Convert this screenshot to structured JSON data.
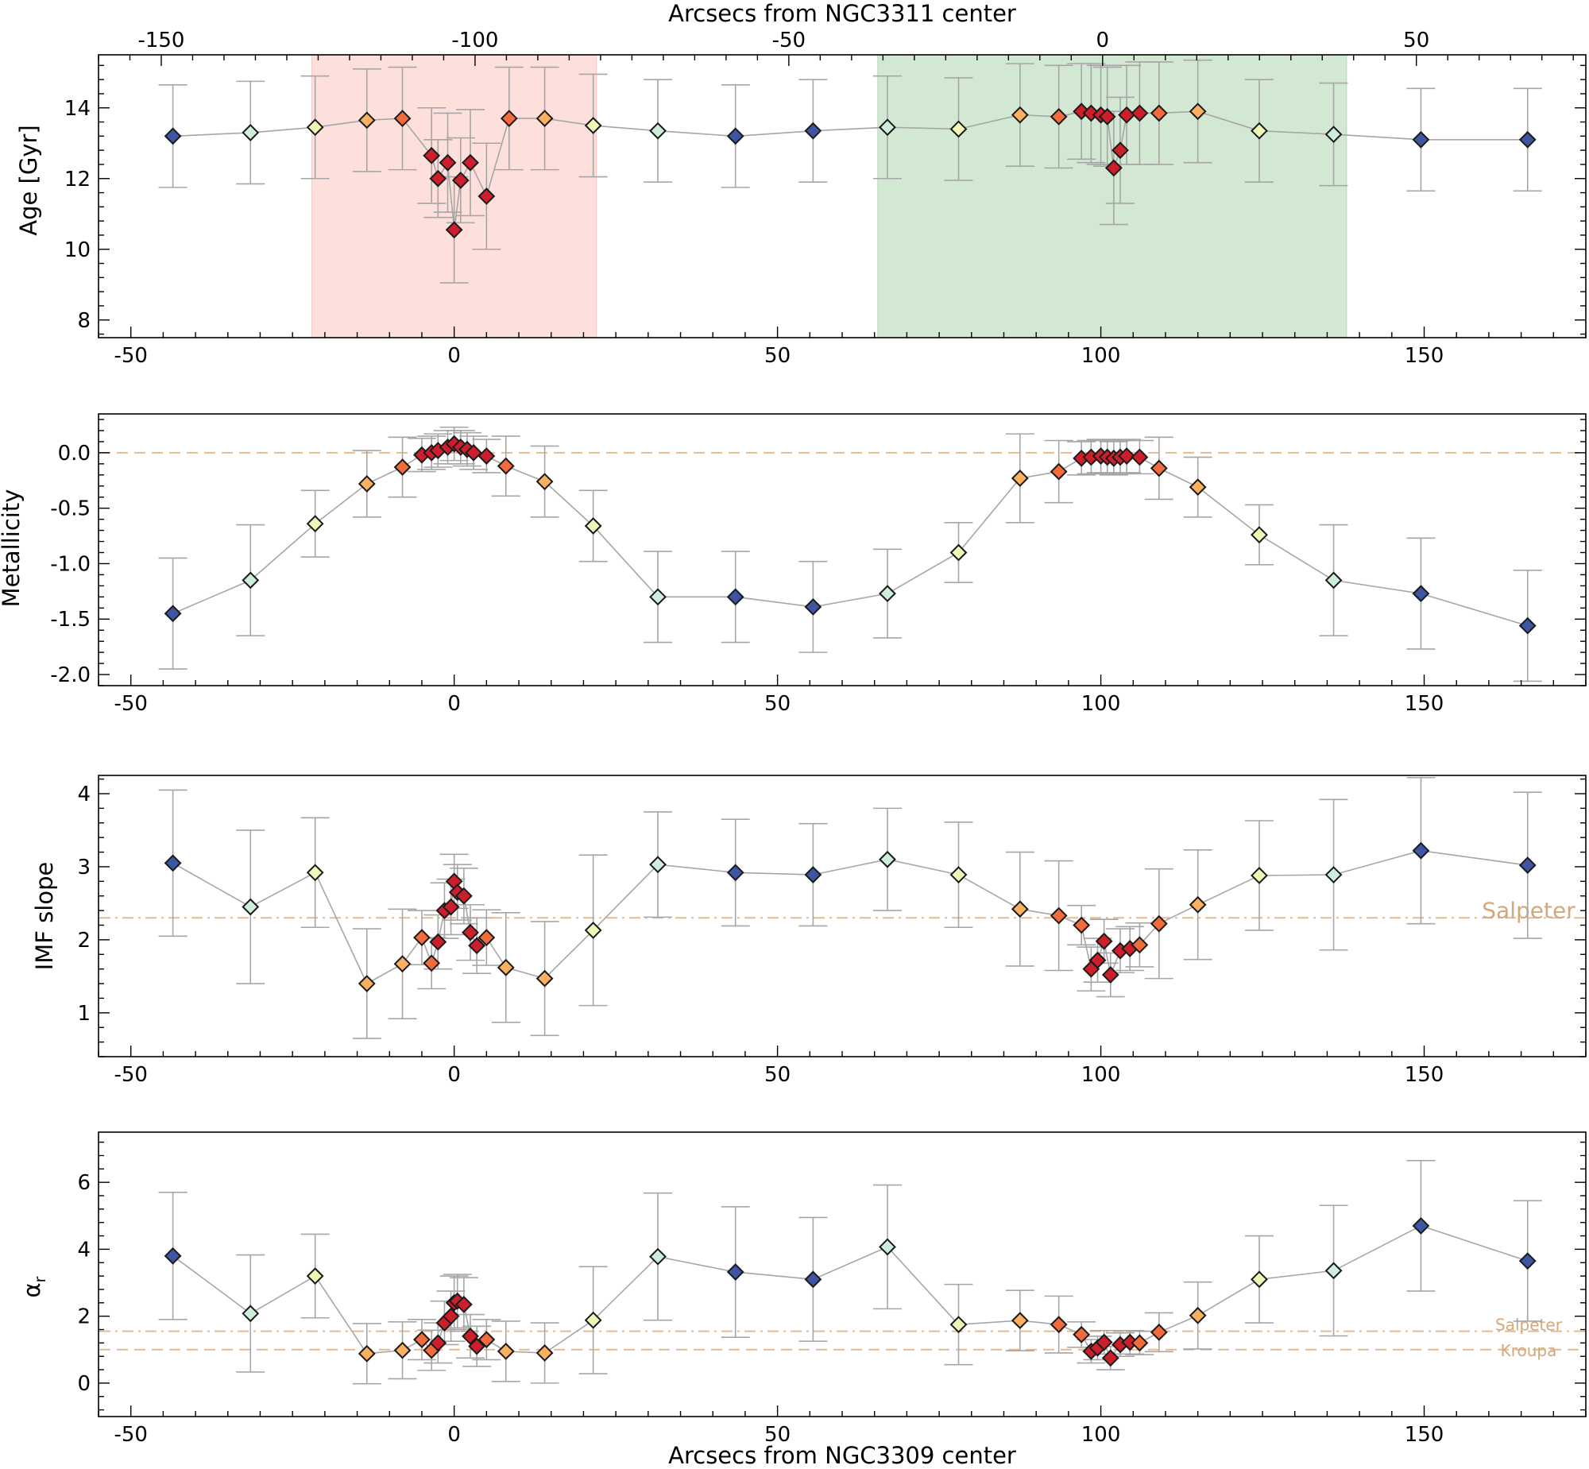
{
  "colors": {
    "error_bar": "#a6a6a6",
    "connector": "#a6a6a6",
    "reference_line": "#e8b98e",
    "reference_text": "#d2a87e",
    "red_region": "#fde0dc",
    "green_region": "#d2e8d2",
    "marker_edge": "#1a1a1a",
    "palette": [
      "#3d55a3",
      "#cdeeda",
      "#eef7b8",
      "#fbb060",
      "#f26b3b",
      "#cc1f2b"
    ]
  },
  "chart_data": [
    {
      "type": "scatter",
      "panel": "age",
      "ylabel": "Age [Gyr]",
      "top_xlabel": "Arcsecs from NGC3311 center",
      "top_xlim": [
        -160,
        77
      ],
      "top_xticks": [
        -150,
        -100,
        -50,
        0,
        50
      ],
      "top_xtick_labels": [
        "-150",
        "-100",
        "-50",
        "0",
        "50"
      ],
      "xlim": [
        -55,
        175
      ],
      "ylim": [
        7.5,
        15.5
      ],
      "xticks": [
        -50,
        0,
        50,
        100,
        150
      ],
      "xtick_labels": [
        "-50",
        "0",
        "50",
        "100",
        "150"
      ],
      "yticks": [
        8,
        10,
        12,
        14
      ],
      "ytick_labels": [
        "8",
        "10",
        "12",
        "14"
      ],
      "shaded_regions": [
        {
          "x0": -22,
          "x1": 22,
          "color": "red"
        },
        {
          "x0": 65.5,
          "x1": 138,
          "color": "green"
        }
      ],
      "x": [
        -43.5,
        -31.5,
        -21.5,
        -13.5,
        -8,
        -3.5,
        -2.5,
        -1,
        0,
        1,
        2.5,
        5,
        8.5,
        14,
        21.5,
        31.5,
        43.5,
        55.5,
        67,
        78,
        87.5,
        93.5,
        97,
        98.5,
        100,
        101,
        102,
        103,
        104,
        106,
        109,
        115,
        124.5,
        136,
        149.5,
        166
      ],
      "y": [
        13.2,
        13.3,
        13.45,
        13.65,
        13.7,
        12.65,
        12.0,
        12.45,
        10.55,
        11.95,
        12.45,
        11.5,
        13.7,
        13.7,
        13.5,
        13.35,
        13.2,
        13.35,
        13.45,
        13.4,
        13.8,
        13.75,
        13.9,
        13.85,
        13.8,
        13.75,
        12.3,
        12.8,
        13.8,
        13.85,
        13.85,
        13.9,
        13.35,
        13.25,
        13.1,
        13.1
      ],
      "err": [
        1.45,
        1.45,
        1.45,
        1.45,
        1.45,
        1.35,
        1.1,
        1.4,
        1.5,
        1.2,
        1.5,
        1.5,
        1.45,
        1.45,
        1.45,
        1.45,
        1.45,
        1.45,
        1.45,
        1.45,
        1.45,
        1.45,
        1.35,
        1.4,
        1.4,
        1.4,
        1.6,
        1.5,
        1.4,
        1.45,
        1.45,
        1.45,
        1.45,
        1.45,
        1.45,
        1.45
      ],
      "color_index": [
        0,
        1,
        2,
        3,
        4,
        5,
        5,
        5,
        5,
        5,
        5,
        5,
        4,
        3,
        2,
        1,
        0,
        0,
        1,
        2,
        3,
        4,
        5,
        5,
        5,
        5,
        5,
        5,
        5,
        5,
        4,
        3,
        2,
        1,
        0,
        0
      ]
    },
    {
      "type": "scatter",
      "panel": "metallicity",
      "ylabel": "Metallicity",
      "xlim": [
        -55,
        175
      ],
      "ylim": [
        -2.1,
        0.35
      ],
      "xticks": [
        -50,
        0,
        50,
        100,
        150
      ],
      "xtick_labels": [
        "-50",
        "0",
        "50",
        "100",
        "150"
      ],
      "yticks": [
        -2.0,
        -1.5,
        -1.0,
        -0.5,
        0.0
      ],
      "ytick_labels": [
        "-2.0",
        "-1.5",
        "-1.0",
        "-0.5",
        "0.0"
      ],
      "reference_lines": [
        {
          "y": 0.0,
          "style": "dashed"
        }
      ],
      "x": [
        -43.5,
        -31.5,
        -21.5,
        -13.5,
        -8,
        -5,
        -3.5,
        -2.5,
        -1,
        0,
        1,
        2,
        3,
        5,
        8,
        14,
        21.5,
        31.5,
        43.5,
        55.5,
        67,
        78,
        87.5,
        93.5,
        97,
        98.5,
        100,
        101,
        102,
        103,
        104,
        106,
        109,
        115,
        124.5,
        136,
        149.5,
        166
      ],
      "y": [
        -1.45,
        -1.15,
        -0.64,
        -0.28,
        -0.13,
        -0.02,
        0.0,
        0.02,
        0.05,
        0.08,
        0.05,
        0.03,
        0.0,
        -0.03,
        -0.12,
        -0.26,
        -0.66,
        -1.3,
        -1.3,
        -1.39,
        -1.27,
        -0.9,
        -0.23,
        -0.17,
        -0.05,
        -0.04,
        -0.03,
        -0.04,
        -0.05,
        -0.04,
        -0.03,
        -0.04,
        -0.14,
        -0.31,
        -0.74,
        -1.15,
        -1.27,
        -1.56
      ],
      "err": [
        0.5,
        0.5,
        0.3,
        0.3,
        0.27,
        0.15,
        0.15,
        0.15,
        0.15,
        0.15,
        0.15,
        0.15,
        0.15,
        0.15,
        0.27,
        0.32,
        0.32,
        0.41,
        0.41,
        0.41,
        0.4,
        0.27,
        0.4,
        0.28,
        0.15,
        0.15,
        0.15,
        0.15,
        0.15,
        0.15,
        0.15,
        0.15,
        0.28,
        0.27,
        0.27,
        0.5,
        0.5,
        0.5
      ],
      "color_index": [
        0,
        1,
        2,
        3,
        4,
        5,
        5,
        5,
        5,
        5,
        5,
        5,
        5,
        5,
        4,
        3,
        2,
        1,
        0,
        0,
        1,
        2,
        3,
        4,
        5,
        5,
        5,
        5,
        5,
        5,
        5,
        5,
        4,
        3,
        2,
        1,
        0,
        0
      ]
    },
    {
      "type": "scatter",
      "panel": "imf",
      "ylabel": "IMF slope",
      "xlim": [
        -55,
        175
      ],
      "ylim": [
        0.4,
        4.25
      ],
      "xticks": [
        -50,
        0,
        50,
        100,
        150
      ],
      "xtick_labels": [
        "-50",
        "0",
        "50",
        "100",
        "150"
      ],
      "yticks": [
        1,
        2,
        3,
        4
      ],
      "ytick_labels": [
        "1",
        "2",
        "3",
        "4"
      ],
      "reference_lines": [
        {
          "y": 2.3,
          "style": "dashdot",
          "label": "Salpeter"
        }
      ],
      "x": [
        -43.5,
        -31.5,
        -21.5,
        -13.5,
        -8,
        -5,
        -3.5,
        -2.5,
        -1.5,
        -0.5,
        0,
        0.5,
        1.5,
        2.5,
        3.5,
        5,
        8,
        14,
        21.5,
        31.5,
        43.5,
        55.5,
        67,
        78,
        87.5,
        93.5,
        97,
        98.5,
        99.5,
        100.5,
        101.5,
        103,
        104.5,
        106,
        109,
        115,
        124.5,
        136,
        149.5,
        166
      ],
      "y": [
        3.05,
        2.45,
        2.92,
        1.4,
        1.67,
        2.03,
        1.68,
        1.97,
        2.4,
        2.45,
        2.8,
        2.65,
        2.6,
        2.1,
        1.92,
        2.03,
        1.62,
        1.47,
        2.13,
        3.03,
        2.92,
        2.89,
        3.1,
        2.89,
        2.42,
        2.33,
        2.2,
        1.6,
        1.72,
        1.98,
        1.52,
        1.85,
        1.88,
        1.93,
        2.22,
        2.48,
        2.88,
        2.89,
        3.22,
        3.02
      ],
      "err": [
        1.0,
        1.05,
        0.75,
        0.75,
        0.75,
        0.37,
        0.35,
        0.37,
        0.38,
        0.38,
        0.37,
        0.38,
        0.38,
        0.38,
        0.38,
        0.38,
        0.75,
        0.78,
        1.03,
        0.72,
        0.73,
        0.7,
        0.7,
        0.72,
        0.78,
        0.75,
        0.27,
        0.3,
        0.3,
        0.3,
        0.3,
        0.3,
        0.3,
        0.3,
        0.75,
        0.75,
        0.75,
        1.03,
        1.0,
        1.0
      ],
      "color_index": [
        0,
        1,
        2,
        3,
        3,
        4,
        4,
        5,
        5,
        5,
        5,
        5,
        5,
        5,
        5,
        4,
        3,
        3,
        2,
        1,
        0,
        0,
        1,
        2,
        3,
        4,
        4,
        5,
        5,
        5,
        5,
        5,
        5,
        4,
        4,
        3,
        2,
        1,
        0,
        0
      ]
    },
    {
      "type": "scatter",
      "panel": "alpha",
      "ylabel_base": "α",
      "ylabel_sub": "r",
      "xlabel": "Arcsecs from NGC3309 center",
      "xlim": [
        -55,
        175
      ],
      "ylim": [
        -1.0,
        7.5
      ],
      "xticks": [
        -50,
        0,
        50,
        100,
        150
      ],
      "xtick_labels": [
        "-50",
        "0",
        "50",
        "100",
        "150"
      ],
      "yticks": [
        0,
        2,
        4,
        6
      ],
      "ytick_labels": [
        "0",
        "2",
        "4",
        "6"
      ],
      "reference_lines": [
        {
          "y": 1.55,
          "style": "dashdot",
          "label": "Salpeter"
        },
        {
          "y": 1.0,
          "style": "dashed",
          "label": "Kroupa"
        }
      ],
      "x": [
        -43.5,
        -31.5,
        -21.5,
        -13.5,
        -8,
        -5,
        -3.5,
        -2.5,
        -1.5,
        -0.5,
        0,
        0.5,
        1.5,
        2.5,
        3.5,
        5,
        8,
        14,
        21.5,
        31.5,
        43.5,
        55.5,
        67,
        78,
        87.5,
        93.5,
        97,
        98.5,
        99.5,
        100.5,
        101.5,
        103,
        104.5,
        106,
        109,
        115,
        124.5,
        136,
        149.5,
        166
      ],
      "y": [
        3.8,
        2.08,
        3.2,
        0.88,
        0.98,
        1.3,
        0.98,
        1.2,
        1.8,
        2.0,
        2.4,
        2.45,
        2.35,
        1.4,
        1.1,
        1.3,
        0.95,
        0.9,
        1.88,
        3.78,
        3.32,
        3.1,
        4.07,
        1.75,
        1.87,
        1.75,
        1.45,
        0.95,
        1.05,
        1.22,
        0.75,
        1.15,
        1.22,
        1.2,
        1.52,
        2.02,
        3.1,
        3.36,
        4.7,
        3.65
      ],
      "err": [
        1.9,
        1.75,
        1.25,
        0.9,
        0.85,
        0.6,
        0.6,
        0.6,
        0.65,
        0.75,
        0.8,
        0.8,
        0.8,
        0.65,
        0.6,
        0.6,
        0.9,
        0.9,
        1.6,
        1.9,
        1.95,
        1.85,
        1.85,
        1.2,
        0.9,
        0.85,
        0.38,
        0.35,
        0.35,
        0.35,
        0.35,
        0.35,
        0.35,
        0.35,
        0.58,
        1.0,
        1.3,
        1.95,
        1.95,
        1.8
      ],
      "color_index": [
        0,
        1,
        2,
        3,
        3,
        4,
        4,
        5,
        5,
        5,
        5,
        5,
        5,
        5,
        5,
        4,
        3,
        3,
        2,
        1,
        0,
        0,
        1,
        2,
        3,
        4,
        4,
        5,
        5,
        5,
        5,
        5,
        5,
        4,
        4,
        3,
        2,
        1,
        0,
        0
      ]
    }
  ]
}
